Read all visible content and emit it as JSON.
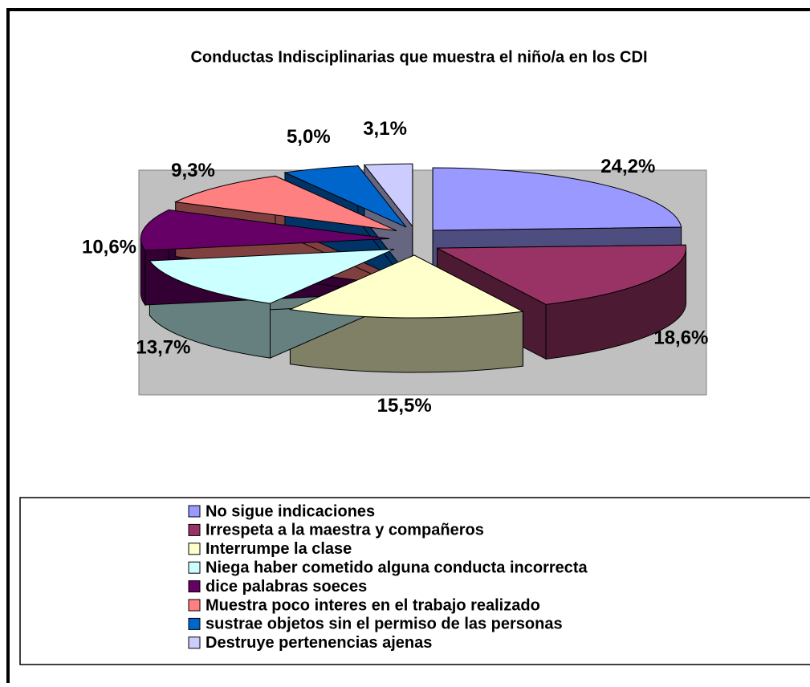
{
  "chart_data": {
    "type": "pie3d",
    "title": "Conductas Indisciplinarias que muestra el niño/a en los CDI",
    "categories": [
      "No sigue indicaciones",
      "Irrespeta a la maestra y compañeros",
      "Interrumpe la clase",
      "Niega haber cometido alguna conducta incorrecta",
      "dice palabras soeces",
      "Muestra poco interes en el trabajo realizado",
      "sustrae objetos sin el permiso de las personas",
      "Destruye pertenencias ajenas"
    ],
    "values": [
      24.2,
      18.6,
      15.5,
      13.7,
      10.6,
      9.3,
      5.0,
      3.1
    ],
    "value_labels": [
      "24,2%",
      "18,6%",
      "15,5%",
      "13,7%",
      "10,6%",
      "9,3%",
      "5,0%",
      "3,1%"
    ],
    "colors": [
      "#9999ff",
      "#993366",
      "#ffffcc",
      "#ccffff",
      "#660066",
      "#ff8080",
      "#0066cc",
      "#ccccff"
    ]
  }
}
